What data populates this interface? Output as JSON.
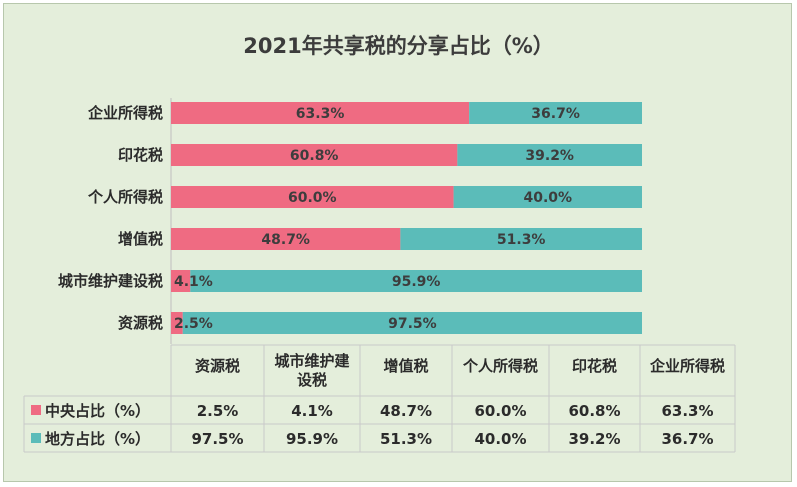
{
  "chart_data": {
    "type": "bar",
    "orientation": "horizontal",
    "stacked": true,
    "title": "2021年共享税的分享占比（%）",
    "categories": [
      "资源税",
      "城市维护建设税",
      "增值税",
      "个人所得税",
      "印花税",
      "企业所得税"
    ],
    "table_headers": [
      "资源税",
      "城市维护建\n设税",
      "增值税",
      "个人所得税",
      "印花税",
      "企业所得税"
    ],
    "series": [
      {
        "name": "中央占比（%）",
        "color": "#ef6b82",
        "values": [
          2.5,
          4.1,
          48.7,
          60.0,
          60.8,
          63.3
        ],
        "labels": [
          "2.5%",
          "4.1%",
          "48.7%",
          "60.0%",
          "60.8%",
          "63.3%"
        ]
      },
      {
        "name": "地方占比（%）",
        "color": "#5bbcb9",
        "values": [
          97.5,
          95.9,
          51.3,
          40.0,
          39.2,
          36.7
        ],
        "labels": [
          "97.5%",
          "95.9%",
          "51.3%",
          "40.0%",
          "39.2%",
          "36.7%"
        ]
      }
    ],
    "xlim": [
      0,
      100
    ],
    "grid": false,
    "legend": "data-table"
  }
}
